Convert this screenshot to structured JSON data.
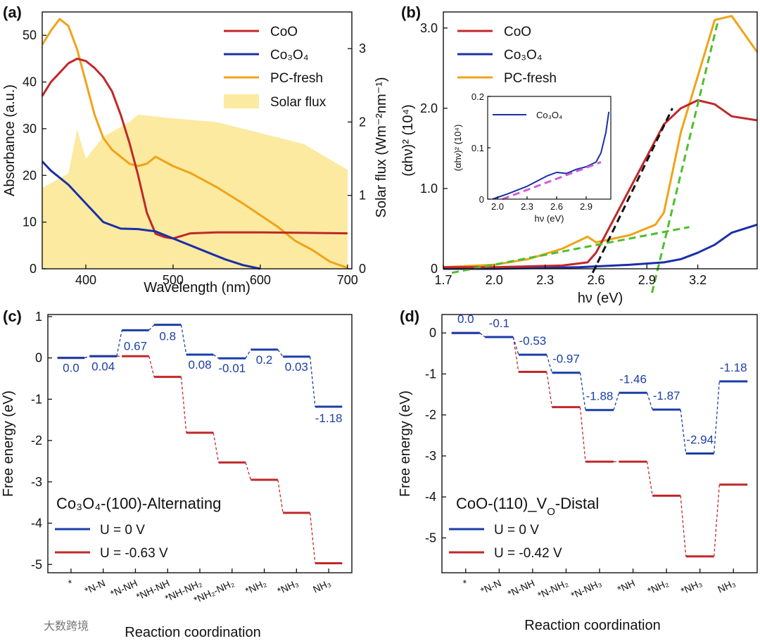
{
  "watermark": "大数跨境",
  "colors": {
    "coo": "#c0282a",
    "co3o4": "#1a2fa8",
    "pc": "#f0a318",
    "solar": "#fbeaa0",
    "u0": "#1a3ea8",
    "uneg": "#c0282a",
    "green_dash": "#4cbf2e",
    "black_dash": "#111111",
    "magenta_dash": "#d05ad8"
  },
  "chart_data": [
    {
      "panel": "(a)",
      "type": "line",
      "xlabel": "Wavelength (nm)",
      "ylabel": "Absorbance (a.u.)",
      "y2label": "Solar flux (Wm⁻²nm⁻¹)",
      "xlim": [
        350,
        705
      ],
      "ylim": [
        0,
        55
      ],
      "y2lim": [
        0,
        3.5
      ],
      "xticks": [
        "400",
        "500",
        "600",
        "700"
      ],
      "yticks": [
        "0",
        "10",
        "20",
        "30",
        "40",
        "50"
      ],
      "y2ticks": [
        "0",
        "1",
        "2",
        "3"
      ],
      "legend": [
        "CoO",
        "Co₃O₄",
        "PC-fresh",
        "Solar flux"
      ],
      "legend_position": "top-right",
      "series": [
        {
          "name": "CoO",
          "color_key": "coo",
          "x": [
            350,
            360,
            370,
            380,
            390,
            400,
            410,
            420,
            430,
            440,
            450,
            460,
            470,
            480,
            490,
            500,
            520,
            550,
            600,
            650,
            700
          ],
          "y": [
            37,
            40,
            42,
            44,
            45,
            44.5,
            43,
            41,
            38,
            33,
            27,
            20,
            12,
            7.5,
            6.8,
            6.5,
            7.6,
            7.8,
            7.8,
            7.7,
            7.6
          ]
        },
        {
          "name": "Co₃O₄",
          "color_key": "co3o4",
          "x": [
            350,
            360,
            380,
            400,
            420,
            440,
            460,
            480,
            500,
            520,
            540,
            560,
            580,
            600
          ],
          "y": [
            23,
            21,
            18,
            14,
            10,
            8.6,
            8.5,
            8,
            6.5,
            5,
            3.5,
            2,
            0.8,
            0
          ]
        },
        {
          "name": "PC-fresh",
          "color_key": "pc",
          "x": [
            350,
            360,
            370,
            380,
            390,
            400,
            410,
            420,
            430,
            440,
            450,
            460,
            470,
            480,
            500,
            520,
            550,
            580,
            600,
            620,
            640,
            660,
            680,
            700
          ],
          "y": [
            48,
            51,
            53.5,
            52,
            47,
            40,
            33,
            28,
            25.5,
            24,
            22.5,
            22,
            22.5,
            24,
            22,
            20.5,
            17.5,
            14,
            11.5,
            9,
            6,
            4,
            1.5,
            0.2
          ]
        },
        {
          "name": "Solar flux",
          "color_key": "solar",
          "kind": "area",
          "axis": "y2",
          "x": [
            350,
            380,
            390,
            400,
            420,
            450,
            460,
            500,
            550,
            600,
            650,
            700
          ],
          "y": [
            1.1,
            1.3,
            1.9,
            1.5,
            1.8,
            2.0,
            2.1,
            2.05,
            2.0,
            1.85,
            1.7,
            1.35
          ]
        }
      ]
    },
    {
      "panel": "(b)",
      "type": "line",
      "xlabel": "hν (eV)",
      "ylabel": "(αhν)² (10⁴)",
      "xlim": [
        1.7,
        3.55
      ],
      "ylim": [
        0,
        3.2
      ],
      "xticks": [
        "1.7",
        "2.0",
        "2.3",
        "2.6",
        "2.9",
        "3.2"
      ],
      "yticks": [
        "0",
        "1.0",
        "2.0",
        "3.0"
      ],
      "legend": [
        "CoO",
        "Co₃O₄",
        "PC-fresh"
      ],
      "legend_position": "top-left",
      "series": [
        {
          "name": "CoO",
          "color_key": "coo",
          "x": [
            1.7,
            2.0,
            2.4,
            2.55,
            2.6,
            2.7,
            2.8,
            2.9,
            3.0,
            3.1,
            3.2,
            3.3,
            3.4,
            3.55
          ],
          "y": [
            0.02,
            0.02,
            0.04,
            0.08,
            0.2,
            0.6,
            1.0,
            1.4,
            1.8,
            2.0,
            2.1,
            2.05,
            1.9,
            1.85
          ]
        },
        {
          "name": "Co₃O₄",
          "color_key": "co3o4",
          "x": [
            1.7,
            2.0,
            2.5,
            2.8,
            3.0,
            3.1,
            3.2,
            3.3,
            3.4,
            3.55
          ],
          "y": [
            0,
            0,
            0.02,
            0.05,
            0.08,
            0.12,
            0.2,
            0.3,
            0.45,
            0.55
          ]
        },
        {
          "name": "PC-fresh",
          "color_key": "pc",
          "x": [
            1.7,
            2.0,
            2.2,
            2.4,
            2.5,
            2.55,
            2.6,
            2.8,
            2.95,
            3.0,
            3.05,
            3.1,
            3.2,
            3.3,
            3.4,
            3.55
          ],
          "y": [
            0.02,
            0.05,
            0.12,
            0.25,
            0.35,
            0.4,
            0.33,
            0.42,
            0.55,
            0.7,
            1.2,
            1.7,
            2.4,
            3.1,
            3.15,
            2.7
          ]
        }
      ],
      "inset": {
        "xlabel": "hν (eV)",
        "ylabel": "(αhν)² (10⁴)",
        "xlim": [
          1.9,
          3.15
        ],
        "ylim": [
          0,
          0.2
        ],
        "xticks": [
          "2.0",
          "2.3",
          "2.6",
          "2.9"
        ],
        "yticks": [
          "0",
          "0.1",
          "0.2"
        ],
        "legend": [
          "Co₃O₄"
        ],
        "series": [
          {
            "name": "Co₃O₄",
            "color_key": "co3o4",
            "x": [
              1.95,
              2.1,
              2.3,
              2.5,
              2.6,
              2.7,
              2.8,
              2.9,
              3.0,
              3.05,
              3.1,
              3.13
            ],
            "y": [
              0,
              0.01,
              0.025,
              0.045,
              0.052,
              0.05,
              0.058,
              0.063,
              0.072,
              0.09,
              0.13,
              0.17
            ]
          }
        ]
      }
    },
    {
      "panel": "(c)",
      "type": "line",
      "xlabel": "Reaction coordination",
      "ylabel": "Free energy (eV)",
      "caption": "Co₃O₄-(100)-Alternating",
      "ylim": [
        -5.2,
        1.05
      ],
      "yticks": [
        "1",
        "0",
        "-1",
        "-2",
        "-3",
        "-4",
        "-5"
      ],
      "categories": [
        "*",
        "*N-N",
        "*N-NH",
        "*NH-NH",
        "*NH-NH₂",
        "*NH₂-NH₂",
        "*NH₂",
        "*NH₃",
        "NH₃"
      ],
      "legend": [
        "U = 0 V",
        "U = -0.63 V"
      ],
      "legend_position": "bottom-left",
      "series": [
        {
          "name": "U = 0 V",
          "color_key": "u0",
          "values": [
            0.0,
            0.04,
            0.67,
            0.8,
            0.08,
            -0.01,
            0.2,
            0.03,
            -1.18
          ],
          "labels": [
            "0.0",
            "0.04",
            "0.67",
            "0.8",
            "0.08",
            "-0.01",
            "0.2",
            "0.03",
            "-1.18"
          ]
        },
        {
          "name": "U = -0.63 V",
          "color_key": "uneg",
          "values": [
            0.0,
            0.04,
            0.04,
            -0.46,
            -1.81,
            -2.53,
            -2.95,
            -3.75,
            -4.97
          ]
        }
      ]
    },
    {
      "panel": "(d)",
      "type": "line",
      "xlabel": "Reaction coordination",
      "ylabel": "Free energy (eV)",
      "caption": "CoO-(110)_V",
      "caption_sub": "O",
      "caption_tail": "-Distal",
      "ylim": [
        -5.85,
        0.45
      ],
      "yticks": [
        "0",
        "-1",
        "-2",
        "-3",
        "-4",
        "-5"
      ],
      "categories": [
        "*",
        "*N-N",
        "*N-NH",
        "*N-NH₂",
        "*N-NH₃",
        "*NH",
        "*NH₂",
        "*NH₃",
        "NH₃"
      ],
      "legend": [
        "U = 0 V",
        "U = -0.42 V"
      ],
      "legend_position": "bottom-left",
      "series": [
        {
          "name": "U = 0 V",
          "color_key": "u0",
          "values": [
            0.0,
            -0.1,
            -0.53,
            -0.97,
            -1.88,
            -1.46,
            -1.87,
            -2.94,
            -1.18
          ],
          "labels": [
            "0.0",
            "-0.1",
            "-0.53",
            "-0.97",
            "-1.88",
            "-1.46",
            "-1.87",
            "-2.94",
            "-1.18"
          ]
        },
        {
          "name": "U = -0.42 V",
          "color_key": "uneg",
          "values": [
            0.0,
            -0.1,
            -0.95,
            -1.81,
            -3.14,
            -3.14,
            -3.97,
            -5.45,
            -3.7
          ]
        }
      ]
    }
  ]
}
